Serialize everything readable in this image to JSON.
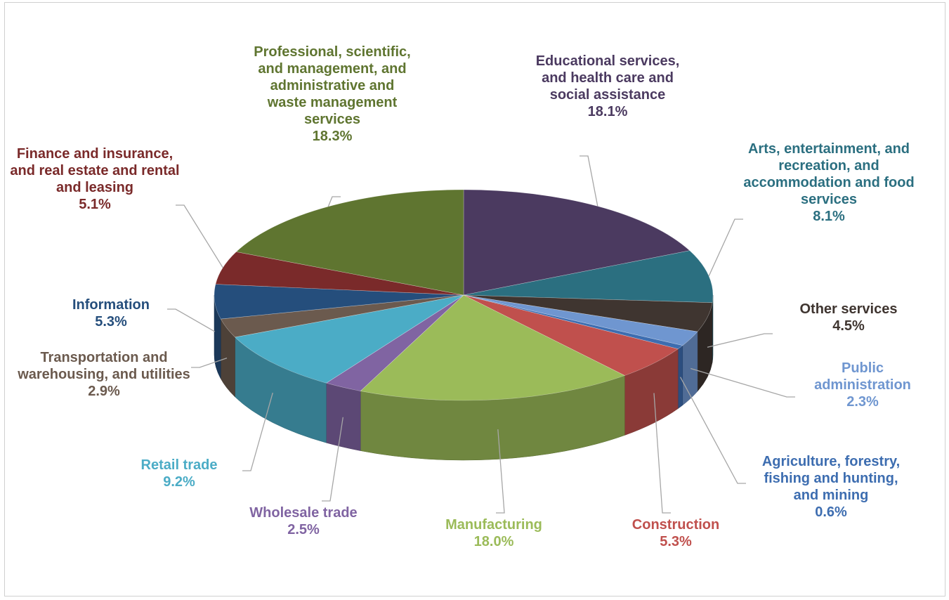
{
  "chart_data": {
    "type": "pie3d",
    "categories": [
      "Educational services, and health care and social assistance",
      "Arts, entertainment, and recreation, and accommodation and food services",
      "Other services",
      "Public administration",
      "Agriculture, forestry, fishing and hunting, and mining",
      "Construction",
      "Manufacturing",
      "Wholesale trade",
      "Retail trade",
      "Transportation and warehousing, and utilities",
      "Information",
      "Finance and insurance, and real estate and rental and leasing",
      "Professional, scientific, and management, and administrative and waste management services"
    ],
    "values": [
      18.1,
      8.1,
      4.5,
      2.3,
      0.6,
      5.3,
      18.0,
      2.5,
      9.2,
      2.9,
      5.3,
      5.1,
      18.3
    ],
    "value_labels": [
      "18.1%",
      "8.1%",
      "4.5%",
      "2.3%",
      "0.6%",
      "5.3%",
      "18.0%",
      "2.5%",
      "9.2%",
      "2.9%",
      "5.3%",
      "5.1%",
      "18.3%"
    ],
    "colors": [
      "#4b3a60",
      "#2b6f80",
      "#3f3530",
      "#6f96d0",
      "#3d6db0",
      "#c0504d",
      "#9bbb59",
      "#8064a2",
      "#4bacc6",
      "#6b5a4e",
      "#254e7c",
      "#7a2a2a",
      "#5f7530"
    ]
  }
}
